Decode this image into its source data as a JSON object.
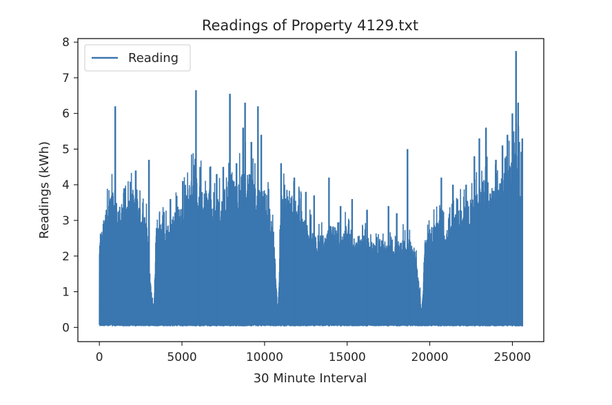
{
  "chart_data": {
    "type": "line",
    "title": "Readings of Property 4129.txt",
    "xlabel": "30 Minute Interval",
    "ylabel": "Readings (kWh)",
    "xlim": [
      -1300,
      26900
    ],
    "ylim": [
      -0.4,
      8.1
    ],
    "xticks": [
      0,
      5000,
      10000,
      15000,
      20000,
      25000
    ],
    "yticks": [
      0,
      1,
      2,
      3,
      4,
      5,
      6,
      7,
      8
    ],
    "grid": false,
    "legend_position": "upper left",
    "series": [
      {
        "name": "Reading",
        "color": "#3a76af",
        "baseline": 0.03,
        "envelope_x": [
          0,
          150,
          400,
          600,
          800,
          1000,
          1200,
          1500,
          1800,
          2100,
          2400,
          2700,
          2900,
          3100,
          3300,
          3400,
          3500,
          3800,
          4100,
          4400,
          4700,
          5000,
          5300,
          5600,
          5800,
          6000,
          6300,
          6600,
          6900,
          7200,
          7500,
          7800,
          8000,
          8300,
          8600,
          8900,
          9200,
          9500,
          9800,
          10100,
          10400,
          10600,
          10800,
          11000,
          11300,
          11600,
          11900,
          12200,
          12500,
          12800,
          13100,
          13400,
          13700,
          14000,
          14300,
          14600,
          14900,
          15200,
          15500,
          15800,
          16100,
          16400,
          16700,
          17000,
          17300,
          17600,
          17900,
          18200,
          18500,
          18800,
          19100,
          19400,
          19500,
          19700,
          19900,
          20200,
          20500,
          20800,
          21100,
          21400,
          21700,
          22000,
          22300,
          22600,
          22900,
          23200,
          23500,
          23800,
          24100,
          24400,
          24700,
          25000,
          25200,
          25400,
          25600
        ],
        "envelope_y": [
          2.7,
          2.8,
          3.3,
          3.6,
          3.9,
          3.2,
          3.4,
          3.6,
          3.7,
          4.0,
          3.4,
          3.2,
          2.9,
          1.2,
          0.6,
          2.5,
          2.8,
          3.0,
          2.8,
          3.2,
          3.4,
          3.4,
          3.9,
          4.2,
          4.3,
          4.2,
          3.8,
          4.0,
          3.8,
          3.7,
          3.8,
          4.1,
          4.4,
          4.0,
          4.3,
          4.5,
          4.2,
          3.9,
          4.0,
          3.8,
          3.2,
          2.2,
          0.3,
          3.8,
          3.9,
          3.8,
          3.6,
          3.3,
          3.0,
          2.8,
          2.6,
          2.7,
          2.5,
          3.0,
          2.8,
          2.4,
          2.9,
          2.6,
          2.5,
          2.7,
          2.6,
          2.5,
          2.3,
          2.5,
          2.4,
          2.3,
          2.4,
          2.5,
          2.5,
          2.5,
          2.3,
          1.0,
          0.3,
          2.5,
          2.7,
          2.9,
          3.0,
          3.0,
          2.7,
          3.2,
          3.3,
          3.4,
          3.6,
          3.6,
          3.8,
          4.2,
          4.1,
          3.9,
          4.0,
          4.3,
          4.5,
          4.8,
          5.0,
          4.9,
          4.3
        ],
        "spikes_x": [
          960,
          1500,
          2200,
          3000,
          4300,
          5050,
          5850,
          6100,
          6700,
          7100,
          7500,
          7900,
          8300,
          8700,
          8820,
          9200,
          9600,
          9800,
          11000,
          11200,
          11800,
          12500,
          13000,
          13900,
          14600,
          15300,
          16200,
          17500,
          18000,
          18650,
          20700,
          21400,
          22200,
          22700,
          23000,
          23400,
          24000,
          24400,
          24700,
          25000,
          25220,
          25350,
          25600
        ],
        "spikes_y": [
          6.2,
          3.9,
          4.4,
          4.7,
          3.6,
          4.1,
          6.65,
          4.5,
          4.5,
          4.3,
          4.5,
          6.55,
          4.6,
          5.6,
          6.3,
          5.2,
          6.2,
          5.4,
          4.6,
          4.0,
          4.2,
          3.8,
          3.7,
          4.2,
          3.4,
          3.6,
          3.3,
          3.4,
          3.2,
          5.0,
          4.2,
          4.0,
          4.0,
          4.8,
          5.3,
          5.6,
          4.7,
          5.1,
          5.4,
          6.0,
          7.75,
          6.3,
          5.3
        ]
      }
    ]
  }
}
